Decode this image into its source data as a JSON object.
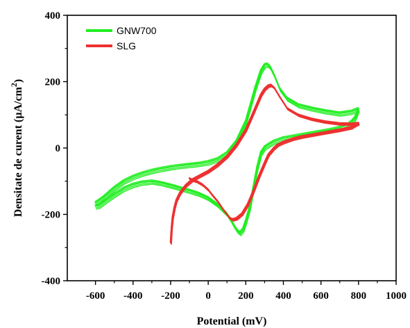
{
  "chart_data": {
    "type": "line",
    "xlabel": "Potential (mV)",
    "ylabel": "Densitate de curent (µA/cm",
    "ylabel_superscript": "2",
    "ylabel_close": ")",
    "xlim": [
      -750,
      1000
    ],
    "ylim": [
      -400,
      400
    ],
    "x_ticks": [
      -600,
      -400,
      -200,
      0,
      200,
      400,
      600,
      800,
      1000
    ],
    "y_ticks": [
      -400,
      -200,
      0,
      200,
      400
    ],
    "grid": false,
    "legend_position": "top-left",
    "series": [
      {
        "name": "GNW700",
        "color": "#22ee22",
        "cycles": [
          {
            "x": [
              -600,
              -560,
              -500,
              -450,
              -400,
              -350,
              -300,
              -250,
              -200,
              -150,
              -100,
              -50,
              0,
              50,
              100,
              150,
              200,
              250,
              280,
              300,
              315,
              330,
              350,
              380,
              420,
              480,
              550,
              620,
              700,
              760,
              800
            ],
            "y": [
              -165,
              -150,
              -120,
              -100,
              -86,
              -76,
              -68,
              -62,
              -57,
              -53,
              -50,
              -47,
              -42,
              -33,
              -15,
              20,
              80,
              180,
              232,
              250,
              253,
              245,
              222,
              180,
              150,
              130,
              120,
              112,
              105,
              110,
              118
            ]
          },
          {
            "x": [
              800,
              780,
              760,
              740,
              700,
              650,
              600,
              550,
              500,
              450,
              400,
              370,
              350,
              320,
              300,
              280,
              260,
              240,
              220,
              200,
              185,
              170,
              155,
              140,
              120,
              100,
              50,
              0,
              -50,
              -100,
              -150,
              -200,
              -250,
              -300,
              -350,
              -400,
              -450,
              -500,
              -550,
              -580,
              -600
            ],
            "y": [
              118,
              90,
              78,
              70,
              62,
              55,
              50,
              45,
              40,
              35,
              30,
              24,
              20,
              10,
              2,
              -15,
              -60,
              -120,
              -180,
              -220,
              -245,
              -255,
              -248,
              -235,
              -215,
              -198,
              -170,
              -150,
              -137,
              -128,
              -120,
              -112,
              -105,
              -100,
              -103,
              -110,
              -122,
              -140,
              -160,
              -173,
              -175
            ]
          }
        ]
      },
      {
        "name": "SLG",
        "color": "#ee3030",
        "cycles": [
          {
            "x": [
              -200,
              -195,
              -190,
              -180,
              -170,
              -150,
              -120,
              -100,
              -80,
              -50,
              0,
              50,
              100,
              150,
              200,
              250,
              280,
              300,
              320,
              335,
              350,
              380,
              420,
              480,
              550,
              620,
              700,
              760,
              800
            ],
            "y": [
              -285,
              -240,
              -210,
              -180,
              -158,
              -135,
              -113,
              -103,
              -94,
              -85,
              -70,
              -50,
              -25,
              10,
              55,
              120,
              160,
              178,
              188,
              190,
              183,
              155,
              120,
              100,
              88,
              80,
              74,
              73,
              75
            ]
          },
          {
            "x": [
              800,
              760,
              700,
              650,
              600,
              550,
              500,
              450,
              400,
              370,
              350,
              320,
              300,
              270,
              240,
              210,
              180,
              150,
              130,
              115,
              100,
              80,
              50,
              20,
              0,
              -30,
              -60,
              -100
            ],
            "y": [
              75,
              62,
              55,
              50,
              45,
              40,
              35,
              28,
              18,
              10,
              0,
              -20,
              -45,
              -85,
              -130,
              -170,
              -198,
              -212,
              -215,
              -210,
              -200,
              -185,
              -160,
              -140,
              -125,
              -110,
              -100,
              -92
            ]
          }
        ]
      }
    ]
  }
}
